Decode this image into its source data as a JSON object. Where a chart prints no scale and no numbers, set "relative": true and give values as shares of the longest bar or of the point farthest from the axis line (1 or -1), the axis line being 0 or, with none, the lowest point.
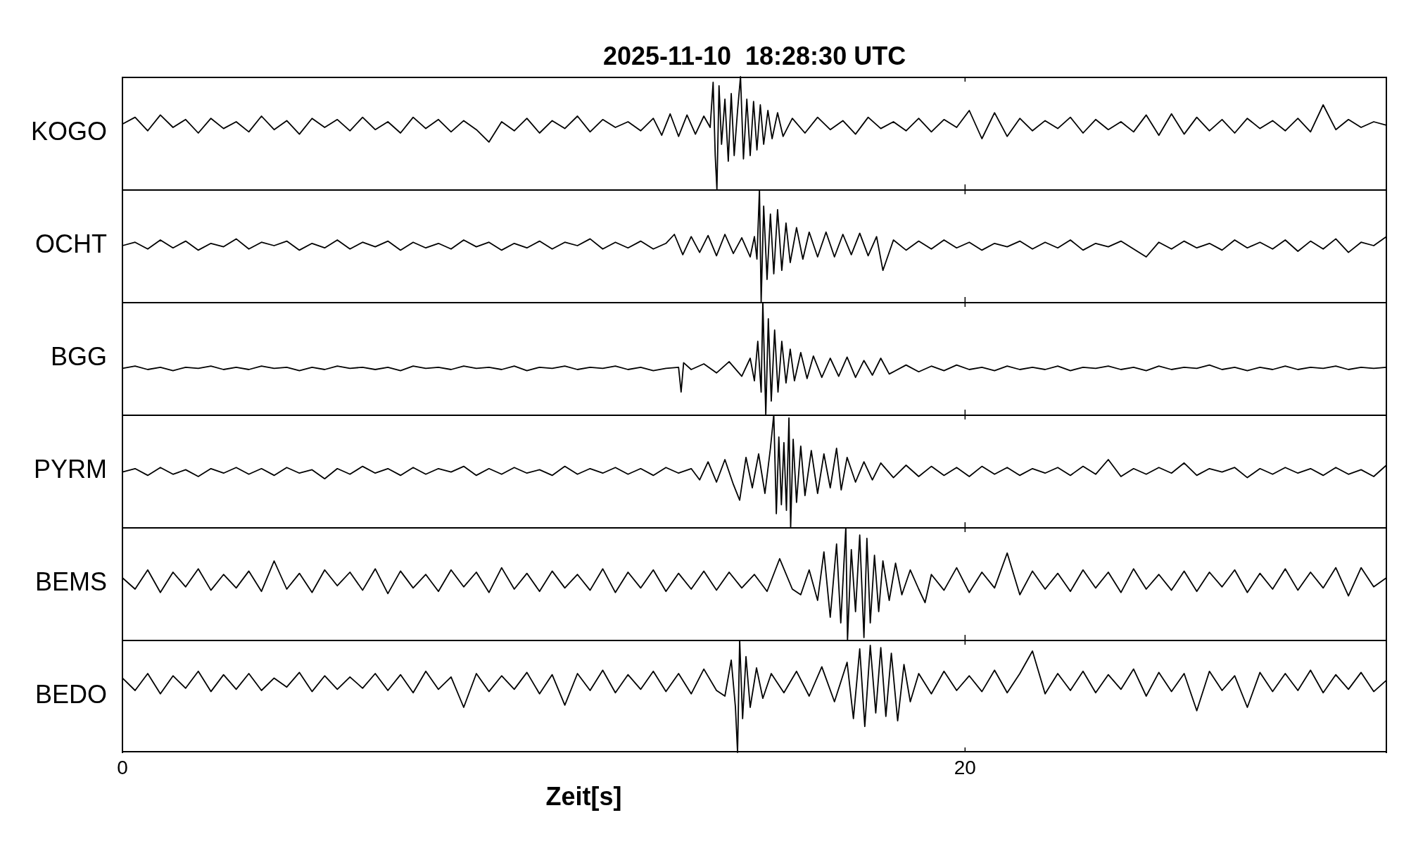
{
  "chart_data": [
    {
      "type": "line",
      "title": "2025-11-10  18:28:30 UTC",
      "ylabel": "KOGO",
      "relative": true,
      "marker": "none",
      "color": "#000000",
      "xlim": [
        0,
        30
      ],
      "tick_labels": false,
      "x": [
        0,
        0.3,
        0.6,
        0.9,
        1.2,
        1.5,
        1.8,
        2.1,
        2.4,
        2.7,
        3,
        3.3,
        3.6,
        3.9,
        4.2,
        4.5,
        4.8,
        5.1,
        5.4,
        5.7,
        6,
        6.3,
        6.6,
        6.9,
        7.2,
        7.5,
        7.8,
        8.1,
        8.4,
        8.7,
        9,
        9.3,
        9.6,
        9.9,
        10.2,
        10.5,
        10.8,
        11.1,
        11.4,
        11.7,
        12,
        12.3,
        12.6,
        12.8,
        13,
        13.2,
        13.4,
        13.6,
        13.8,
        13.95,
        14.02,
        14.07,
        14.11,
        14.16,
        14.22,
        14.3,
        14.38,
        14.45,
        14.52,
        14.6,
        14.67,
        14.74,
        14.82,
        14.9,
        14.98,
        15.06,
        15.14,
        15.22,
        15.32,
        15.42,
        15.55,
        15.68,
        15.9,
        16.2,
        16.5,
        16.8,
        17.1,
        17.4,
        17.7,
        18,
        18.3,
        18.6,
        18.9,
        19.2,
        19.5,
        19.8,
        20.1,
        20.4,
        20.7,
        21,
        21.3,
        21.6,
        21.9,
        22.2,
        22.5,
        22.8,
        23.1,
        23.4,
        23.7,
        24,
        24.3,
        24.6,
        24.9,
        25.2,
        25.5,
        25.8,
        26.1,
        26.4,
        26.7,
        27,
        27.3,
        27.6,
        27.9,
        28.2,
        28.5,
        28.8,
        29.1,
        29.4,
        29.7,
        30
      ],
      "values": [
        0.58,
        0.64,
        0.52,
        0.66,
        0.55,
        0.62,
        0.5,
        0.63,
        0.54,
        0.6,
        0.51,
        0.65,
        0.53,
        0.61,
        0.49,
        0.63,
        0.55,
        0.62,
        0.52,
        0.64,
        0.53,
        0.6,
        0.5,
        0.64,
        0.54,
        0.62,
        0.51,
        0.61,
        0.53,
        0.42,
        0.6,
        0.52,
        0.63,
        0.5,
        0.61,
        0.54,
        0.65,
        0.51,
        0.62,
        0.55,
        0.6,
        0.52,
        0.63,
        0.48,
        0.67,
        0.47,
        0.66,
        0.49,
        0.65,
        0.55,
        0.95,
        0.3,
        0,
        0.92,
        0.4,
        0.8,
        0.25,
        0.85,
        0.3,
        0.7,
        1,
        0.27,
        0.8,
        0.3,
        0.78,
        0.35,
        0.75,
        0.4,
        0.7,
        0.45,
        0.68,
        0.47,
        0.63,
        0.5,
        0.64,
        0.53,
        0.61,
        0.49,
        0.64,
        0.54,
        0.6,
        0.52,
        0.63,
        0.51,
        0.62,
        0.55,
        0.7,
        0.45,
        0.68,
        0.47,
        0.63,
        0.52,
        0.61,
        0.54,
        0.64,
        0.5,
        0.62,
        0.53,
        0.6,
        0.51,
        0.66,
        0.48,
        0.67,
        0.49,
        0.64,
        0.52,
        0.62,
        0.5,
        0.63,
        0.54,
        0.61,
        0.52,
        0.63,
        0.51,
        0.75,
        0.53,
        0.62,
        0.55,
        0.6,
        0.57
      ]
    },
    {
      "type": "line",
      "ylabel": "OCHT",
      "relative": true,
      "marker": "none",
      "color": "#000000",
      "xlim": [
        0,
        30
      ],
      "tick_labels": false,
      "x": [
        0,
        0.3,
        0.6,
        0.9,
        1.2,
        1.5,
        1.8,
        2.1,
        2.4,
        2.7,
        3,
        3.3,
        3.6,
        3.9,
        4.2,
        4.5,
        4.8,
        5.1,
        5.4,
        5.7,
        6,
        6.3,
        6.6,
        6.9,
        7.2,
        7.5,
        7.8,
        8.1,
        8.4,
        8.7,
        9,
        9.3,
        9.6,
        9.9,
        10.2,
        10.5,
        10.8,
        11.1,
        11.4,
        11.7,
        12,
        12.3,
        12.6,
        12.9,
        13.1,
        13.3,
        13.5,
        13.7,
        13.9,
        14.1,
        14.3,
        14.5,
        14.7,
        14.9,
        15,
        15.06,
        15.12,
        15.16,
        15.22,
        15.3,
        15.38,
        15.46,
        15.55,
        15.65,
        15.75,
        15.85,
        16,
        16.15,
        16.3,
        16.5,
        16.7,
        16.9,
        17.1,
        17.3,
        17.5,
        17.7,
        17.9,
        18.05,
        18.3,
        18.6,
        18.9,
        19.2,
        19.5,
        19.8,
        20.1,
        20.4,
        20.7,
        21,
        21.3,
        21.6,
        21.9,
        22.2,
        22.5,
        22.8,
        23.1,
        23.4,
        23.7,
        24,
        24.3,
        24.6,
        24.9,
        25.2,
        25.5,
        25.8,
        26.1,
        26.4,
        26.7,
        27,
        27.3,
        27.6,
        27.9,
        28.2,
        28.5,
        28.8,
        29.1,
        29.4,
        29.7,
        30
      ],
      "values": [
        0.5,
        0.53,
        0.47,
        0.55,
        0.48,
        0.54,
        0.46,
        0.52,
        0.49,
        0.56,
        0.47,
        0.53,
        0.5,
        0.54,
        0.46,
        0.52,
        0.48,
        0.55,
        0.47,
        0.53,
        0.49,
        0.54,
        0.46,
        0.53,
        0.48,
        0.52,
        0.47,
        0.55,
        0.49,
        0.53,
        0.46,
        0.52,
        0.48,
        0.54,
        0.47,
        0.53,
        0.5,
        0.56,
        0.47,
        0.53,
        0.48,
        0.54,
        0.47,
        0.52,
        0.6,
        0.42,
        0.58,
        0.44,
        0.59,
        0.41,
        0.6,
        0.43,
        0.57,
        0.4,
        0.58,
        0.38,
        1,
        0,
        0.85,
        0.2,
        0.78,
        0.25,
        0.82,
        0.28,
        0.7,
        0.35,
        0.66,
        0.38,
        0.62,
        0.4,
        0.62,
        0.4,
        0.6,
        0.42,
        0.61,
        0.41,
        0.58,
        0.28,
        0.55,
        0.46,
        0.54,
        0.47,
        0.55,
        0.48,
        0.53,
        0.46,
        0.52,
        0.49,
        0.54,
        0.47,
        0.53,
        0.48,
        0.55,
        0.46,
        0.52,
        0.49,
        0.54,
        0.47,
        0.4,
        0.53,
        0.47,
        0.54,
        0.48,
        0.52,
        0.46,
        0.55,
        0.48,
        0.53,
        0.47,
        0.55,
        0.45,
        0.54,
        0.47,
        0.56,
        0.44,
        0.53,
        0.5,
        0.58
      ]
    },
    {
      "type": "line",
      "ylabel": "BGG",
      "relative": true,
      "marker": "none",
      "color": "#000000",
      "xlim": [
        0,
        30
      ],
      "tick_labels": false,
      "x": [
        0,
        0.3,
        0.6,
        0.9,
        1.2,
        1.5,
        1.8,
        2.1,
        2.4,
        2.7,
        3,
        3.3,
        3.6,
        3.9,
        4.2,
        4.5,
        4.8,
        5.1,
        5.4,
        5.7,
        6,
        6.3,
        6.6,
        6.9,
        7.2,
        7.5,
        7.8,
        8.1,
        8.4,
        8.7,
        9,
        9.3,
        9.6,
        9.9,
        10.2,
        10.5,
        10.8,
        11.1,
        11.4,
        11.7,
        12,
        12.3,
        12.6,
        12.9,
        13.2,
        13.26,
        13.32,
        13.5,
        13.8,
        14.1,
        14.4,
        14.7,
        14.9,
        15,
        15.08,
        15.16,
        15.2,
        15.27,
        15.33,
        15.4,
        15.48,
        15.56,
        15.65,
        15.75,
        15.85,
        15.95,
        16.1,
        16.25,
        16.4,
        16.6,
        16.8,
        17,
        17.2,
        17.4,
        17.6,
        17.8,
        18,
        18.2,
        18.6,
        18.9,
        19.2,
        19.5,
        19.8,
        20.1,
        20.4,
        20.7,
        21,
        21.3,
        21.6,
        21.9,
        22.2,
        22.5,
        22.8,
        23.1,
        23.4,
        23.7,
        24,
        24.3,
        24.6,
        24.9,
        25.2,
        25.5,
        25.8,
        26.1,
        26.4,
        26.7,
        27,
        27.3,
        27.6,
        27.9,
        28.2,
        28.5,
        28.8,
        29.1,
        29.4,
        29.7,
        30
      ],
      "values": [
        0.41,
        0.43,
        0.4,
        0.42,
        0.39,
        0.42,
        0.41,
        0.43,
        0.4,
        0.42,
        0.4,
        0.43,
        0.41,
        0.42,
        0.39,
        0.42,
        0.4,
        0.43,
        0.41,
        0.42,
        0.4,
        0.42,
        0.39,
        0.43,
        0.41,
        0.42,
        0.4,
        0.43,
        0.41,
        0.42,
        0.4,
        0.43,
        0.39,
        0.42,
        0.41,
        0.43,
        0.4,
        0.42,
        0.41,
        0.43,
        0.4,
        0.42,
        0.39,
        0.41,
        0.42,
        0.2,
        0.46,
        0.4,
        0.45,
        0.37,
        0.47,
        0.34,
        0.5,
        0.3,
        0.65,
        0.2,
        1,
        0,
        0.85,
        0.12,
        0.75,
        0.2,
        0.65,
        0.28,
        0.58,
        0.3,
        0.55,
        0.32,
        0.52,
        0.33,
        0.5,
        0.34,
        0.51,
        0.33,
        0.48,
        0.35,
        0.5,
        0.36,
        0.44,
        0.38,
        0.43,
        0.39,
        0.44,
        0.4,
        0.42,
        0.39,
        0.43,
        0.4,
        0.42,
        0.4,
        0.43,
        0.39,
        0.42,
        0.41,
        0.43,
        0.4,
        0.42,
        0.39,
        0.43,
        0.4,
        0.42,
        0.41,
        0.44,
        0.4,
        0.42,
        0.39,
        0.42,
        0.4,
        0.43,
        0.4,
        0.42,
        0.41,
        0.43,
        0.4,
        0.42,
        0.41,
        0.42
      ]
    },
    {
      "type": "line",
      "ylabel": "PYRM",
      "relative": true,
      "marker": "none",
      "color": "#000000",
      "xlim": [
        0,
        30
      ],
      "tick_labels": false,
      "x": [
        0,
        0.3,
        0.6,
        0.9,
        1.2,
        1.5,
        1.8,
        2.1,
        2.4,
        2.7,
        3,
        3.3,
        3.6,
        3.9,
        4.2,
        4.5,
        4.8,
        5.1,
        5.4,
        5.7,
        6,
        6.3,
        6.6,
        6.9,
        7.2,
        7.5,
        7.8,
        8.1,
        8.4,
        8.7,
        9,
        9.3,
        9.6,
        9.9,
        10.2,
        10.5,
        10.8,
        11.1,
        11.4,
        11.7,
        12,
        12.3,
        12.6,
        12.9,
        13.2,
        13.5,
        13.7,
        13.9,
        14.1,
        14.3,
        14.5,
        14.65,
        14.8,
        14.95,
        15.1,
        15.25,
        15.38,
        15.46,
        15.52,
        15.58,
        15.64,
        15.7,
        15.76,
        15.82,
        15.86,
        15.92,
        16,
        16.1,
        16.2,
        16.35,
        16.5,
        16.65,
        16.8,
        16.95,
        17.06,
        17.2,
        17.4,
        17.6,
        17.8,
        18,
        18.3,
        18.6,
        18.9,
        19.2,
        19.5,
        19.8,
        20.1,
        20.4,
        20.7,
        21,
        21.3,
        21.6,
        21.9,
        22.2,
        22.5,
        22.8,
        23.1,
        23.4,
        23.7,
        24,
        24.3,
        24.6,
        24.9,
        25.2,
        25.5,
        25.8,
        26.1,
        26.4,
        26.7,
        27,
        27.3,
        27.6,
        27.9,
        28.2,
        28.5,
        28.8,
        29.1,
        29.4,
        29.7,
        30
      ],
      "values": [
        0.49,
        0.52,
        0.46,
        0.53,
        0.47,
        0.51,
        0.45,
        0.52,
        0.48,
        0.53,
        0.47,
        0.52,
        0.46,
        0.53,
        0.48,
        0.51,
        0.43,
        0.52,
        0.47,
        0.54,
        0.48,
        0.52,
        0.46,
        0.53,
        0.47,
        0.52,
        0.49,
        0.54,
        0.46,
        0.52,
        0.47,
        0.53,
        0.48,
        0.51,
        0.46,
        0.54,
        0.47,
        0.52,
        0.48,
        0.53,
        0.47,
        0.52,
        0.46,
        0.53,
        0.48,
        0.52,
        0.42,
        0.58,
        0.4,
        0.6,
        0.38,
        0.24,
        0.62,
        0.35,
        0.65,
        0.3,
        0.7,
        1,
        0.12,
        0.8,
        0.2,
        0.75,
        0.15,
        0.97,
        0,
        0.78,
        0.22,
        0.72,
        0.28,
        0.68,
        0.3,
        0.65,
        0.35,
        0.7,
        0.33,
        0.62,
        0.4,
        0.58,
        0.42,
        0.57,
        0.44,
        0.55,
        0.45,
        0.54,
        0.46,
        0.53,
        0.45,
        0.54,
        0.47,
        0.53,
        0.46,
        0.52,
        0.48,
        0.53,
        0.46,
        0.54,
        0.47,
        0.6,
        0.45,
        0.52,
        0.47,
        0.53,
        0.48,
        0.57,
        0.46,
        0.52,
        0.49,
        0.53,
        0.44,
        0.52,
        0.47,
        0.53,
        0.48,
        0.52,
        0.46,
        0.53,
        0.47,
        0.51,
        0.45,
        0.55
      ]
    },
    {
      "type": "line",
      "ylabel": "BEMS",
      "relative": true,
      "marker": "none",
      "color": "#000000",
      "xlim": [
        0,
        30
      ],
      "tick_labels": false,
      "x": [
        0,
        0.3,
        0.6,
        0.9,
        1.2,
        1.5,
        1.8,
        2.1,
        2.4,
        2.7,
        3,
        3.3,
        3.6,
        3.9,
        4.2,
        4.5,
        4.8,
        5.1,
        5.4,
        5.7,
        6,
        6.3,
        6.6,
        6.9,
        7.2,
        7.5,
        7.8,
        8.1,
        8.4,
        8.7,
        9,
        9.3,
        9.6,
        9.9,
        10.2,
        10.5,
        10.8,
        11.1,
        11.4,
        11.7,
        12,
        12.3,
        12.6,
        12.9,
        13.2,
        13.5,
        13.8,
        14.1,
        14.4,
        14.7,
        15,
        15.3,
        15.6,
        15.9,
        16.1,
        16.3,
        16.5,
        16.65,
        16.8,
        16.95,
        17.05,
        17.17,
        17.21,
        17.3,
        17.4,
        17.5,
        17.6,
        17.67,
        17.75,
        17.85,
        17.95,
        18.05,
        18.2,
        18.35,
        18.5,
        18.7,
        18.9,
        19.05,
        19.2,
        19.5,
        19.8,
        20.1,
        20.4,
        20.7,
        21,
        21.3,
        21.6,
        21.9,
        22.2,
        22.5,
        22.8,
        23.1,
        23.4,
        23.7,
        24,
        24.3,
        24.6,
        24.9,
        25.2,
        25.5,
        25.8,
        26.1,
        26.4,
        26.7,
        27,
        27.3,
        27.6,
        27.9,
        28.2,
        28.5,
        28.8,
        29.1,
        29.4,
        29.7,
        30
      ],
      "values": [
        0.55,
        0.45,
        0.62,
        0.42,
        0.6,
        0.47,
        0.63,
        0.44,
        0.58,
        0.46,
        0.61,
        0.43,
        0.7,
        0.45,
        0.59,
        0.42,
        0.62,
        0.48,
        0.6,
        0.44,
        0.63,
        0.41,
        0.61,
        0.46,
        0.58,
        0.43,
        0.62,
        0.47,
        0.6,
        0.42,
        0.64,
        0.45,
        0.59,
        0.43,
        0.61,
        0.46,
        0.58,
        0.44,
        0.63,
        0.42,
        0.6,
        0.46,
        0.62,
        0.43,
        0.59,
        0.45,
        0.61,
        0.44,
        0.6,
        0.46,
        0.58,
        0.43,
        0.72,
        0.45,
        0.4,
        0.62,
        0.35,
        0.78,
        0.2,
        0.85,
        0.15,
        1,
        0,
        0.8,
        0.25,
        0.93,
        0.02,
        0.9,
        0.15,
        0.75,
        0.25,
        0.7,
        0.35,
        0.68,
        0.4,
        0.62,
        0.45,
        0.33,
        0.58,
        0.44,
        0.64,
        0.42,
        0.6,
        0.46,
        0.77,
        0.4,
        0.61,
        0.45,
        0.59,
        0.43,
        0.62,
        0.46,
        0.6,
        0.42,
        0.63,
        0.45,
        0.58,
        0.44,
        0.61,
        0.43,
        0.6,
        0.47,
        0.62,
        0.42,
        0.59,
        0.45,
        0.63,
        0.44,
        0.6,
        0.46,
        0.64,
        0.39,
        0.64,
        0.47,
        0.55
      ]
    },
    {
      "type": "line",
      "ylabel": "BEDO",
      "xlabel": "Zeit[s]",
      "relative": true,
      "marker": "none",
      "color": "#000000",
      "xlim": [
        0,
        30
      ],
      "xticks": [
        0,
        20
      ],
      "tick_labels": "x",
      "x": [
        0,
        0.3,
        0.6,
        0.9,
        1.2,
        1.5,
        1.8,
        2.1,
        2.4,
        2.7,
        3,
        3.3,
        3.6,
        3.9,
        4.2,
        4.5,
        4.8,
        5.1,
        5.4,
        5.7,
        6,
        6.3,
        6.6,
        6.9,
        7.2,
        7.5,
        7.8,
        8.1,
        8.4,
        8.7,
        9,
        9.3,
        9.6,
        9.9,
        10.2,
        10.5,
        10.8,
        11.1,
        11.4,
        11.7,
        12,
        12.3,
        12.6,
        12.9,
        13.2,
        13.5,
        13.8,
        14.1,
        14.3,
        14.45,
        14.55,
        14.6,
        14.65,
        14.72,
        14.8,
        14.9,
        15.05,
        15.2,
        15.4,
        15.7,
        16,
        16.3,
        16.6,
        16.9,
        17.2,
        17.35,
        17.5,
        17.62,
        17.75,
        17.88,
        18,
        18.12,
        18.25,
        18.4,
        18.55,
        18.7,
        18.9,
        19.2,
        19.5,
        19.8,
        20.1,
        20.4,
        20.7,
        21,
        21.3,
        21.6,
        21.9,
        22.2,
        22.5,
        22.8,
        23.1,
        23.4,
        23.7,
        24,
        24.3,
        24.6,
        24.9,
        25.2,
        25.5,
        25.8,
        26.1,
        26.4,
        26.7,
        27,
        27.3,
        27.6,
        27.9,
        28.2,
        28.5,
        28.8,
        29.1,
        29.4,
        29.7,
        30
      ],
      "values": [
        0.66,
        0.55,
        0.7,
        0.52,
        0.68,
        0.57,
        0.72,
        0.54,
        0.69,
        0.56,
        0.7,
        0.55,
        0.66,
        0.58,
        0.71,
        0.54,
        0.68,
        0.56,
        0.67,
        0.57,
        0.7,
        0.55,
        0.69,
        0.53,
        0.72,
        0.56,
        0.67,
        0.4,
        0.7,
        0.54,
        0.68,
        0.56,
        0.71,
        0.52,
        0.69,
        0.42,
        0.7,
        0.55,
        0.73,
        0.53,
        0.69,
        0.56,
        0.72,
        0.54,
        0.7,
        0.52,
        0.74,
        0.55,
        0.5,
        0.82,
        0.4,
        0,
        1,
        0.3,
        0.85,
        0.4,
        0.75,
        0.48,
        0.7,
        0.53,
        0.72,
        0.5,
        0.76,
        0.45,
        0.8,
        0.3,
        0.92,
        0.23,
        0.95,
        0.35,
        0.93,
        0.32,
        0.88,
        0.28,
        0.78,
        0.45,
        0.7,
        0.52,
        0.72,
        0.55,
        0.68,
        0.54,
        0.73,
        0.53,
        0.7,
        0.9,
        0.52,
        0.7,
        0.55,
        0.72,
        0.53,
        0.69,
        0.56,
        0.74,
        0.5,
        0.71,
        0.54,
        0.7,
        0.37,
        0.72,
        0.55,
        0.68,
        0.4,
        0.71,
        0.54,
        0.7,
        0.55,
        0.73,
        0.53,
        0.69,
        0.56,
        0.71,
        0.54,
        0.64
      ]
    }
  ]
}
